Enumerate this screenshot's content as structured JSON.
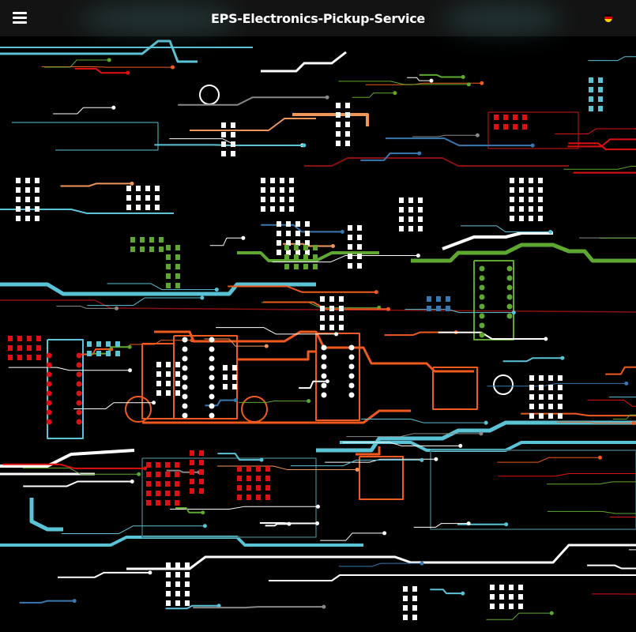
{
  "header": {
    "title": "EPS-Electronics-Pickup-Service",
    "menu_icon": "hamburger-menu-icon",
    "language_icon": "german-flag-icon",
    "flag_colors": [
      "#000000",
      "#dd0000",
      "#ffce00"
    ]
  },
  "background": {
    "description_icon": "circuit-board-background",
    "colors": {
      "cyan": "#5bc3d6",
      "white": "#ffffff",
      "orange": "#f05a1e",
      "green": "#5ea832",
      "red": "#e01010",
      "blue": "#3a78b0",
      "peach": "#f0965a",
      "darkred": "#8a1010"
    }
  }
}
